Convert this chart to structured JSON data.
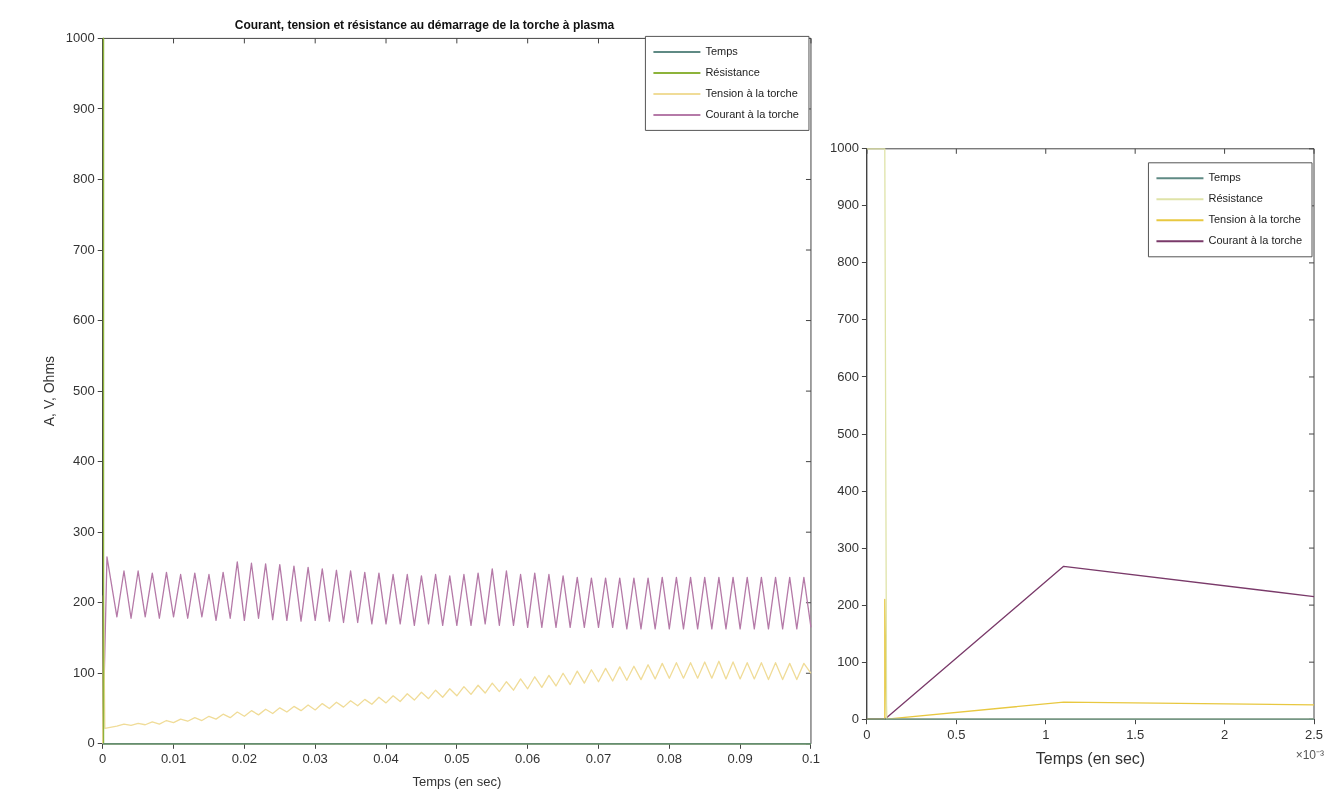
{
  "chart_data": [
    {
      "type": "line",
      "title": "Courant, tension et résistance au démarrage de la torche à plasma",
      "xlabel": "Temps (en sec)",
      "ylabel": "A, V, Ohms",
      "xlim": [
        0,
        0.1
      ],
      "ylim": [
        0,
        1000
      ],
      "xticks": [
        0,
        0.01,
        0.02,
        0.03,
        0.04,
        0.05,
        0.06,
        0.07,
        0.08,
        0.09,
        0.1
      ],
      "yticks": [
        0,
        100,
        200,
        300,
        400,
        500,
        600,
        700,
        800,
        900,
        1000
      ],
      "legend": "top right",
      "series": [
        {
          "name": "Temps",
          "color": "#5f8a84",
          "x": [
            0,
            0.1
          ],
          "values": [
            0,
            0
          ]
        },
        {
          "name": "Résistance",
          "color": "#8db33a",
          "x": [
            0,
            0.0001,
            0.00012,
            0.1
          ],
          "values": [
            1000,
            1000,
            0,
            0
          ]
        },
        {
          "name": "Tension à la torche",
          "color": "#f0dc98",
          "x": [
            0,
            0.0001,
            0.0003,
            0.002,
            0.003,
            0.004,
            0.005,
            0.006,
            0.007,
            0.008,
            0.009,
            0.01,
            0.011,
            0.012,
            0.013,
            0.014,
            0.015,
            0.016,
            0.017,
            0.018,
            0.019,
            0.02,
            0.021,
            0.022,
            0.023,
            0.024,
            0.025,
            0.026,
            0.027,
            0.028,
            0.029,
            0.03,
            0.031,
            0.032,
            0.033,
            0.034,
            0.035,
            0.036,
            0.037,
            0.038,
            0.039,
            0.04,
            0.041,
            0.042,
            0.043,
            0.044,
            0.045,
            0.046,
            0.047,
            0.048,
            0.049,
            0.05,
            0.051,
            0.052,
            0.053,
            0.054,
            0.055,
            0.056,
            0.057,
            0.058,
            0.059,
            0.06,
            0.061,
            0.062,
            0.063,
            0.064,
            0.065,
            0.066,
            0.067,
            0.068,
            0.069,
            0.07,
            0.071,
            0.072,
            0.073,
            0.074,
            0.075,
            0.076,
            0.077,
            0.078,
            0.079,
            0.08,
            0.081,
            0.082,
            0.083,
            0.084,
            0.085,
            0.086,
            0.087,
            0.088,
            0.089,
            0.09,
            0.091,
            0.092,
            0.093,
            0.094,
            0.095,
            0.096,
            0.097,
            0.098,
            0.099,
            0.1
          ],
          "values": [
            0,
            210,
            22,
            25,
            28,
            26,
            29,
            27,
            31,
            28,
            33,
            30,
            35,
            32,
            37,
            33,
            39,
            35,
            42,
            37,
            45,
            39,
            47,
            41,
            49,
            43,
            51,
            45,
            53,
            47,
            55,
            48,
            57,
            50,
            59,
            52,
            61,
            54,
            63,
            56,
            66,
            58,
            68,
            60,
            71,
            62,
            73,
            64,
            76,
            66,
            78,
            68,
            81,
            70,
            83,
            72,
            86,
            74,
            88,
            76,
            92,
            78,
            95,
            80,
            97,
            82,
            100,
            84,
            103,
            86,
            105,
            88,
            107,
            89,
            109,
            90,
            110,
            91,
            112,
            92,
            114,
            93,
            115,
            93,
            115,
            93,
            116,
            93,
            117,
            92,
            116,
            92,
            115,
            92,
            115,
            91,
            115,
            91,
            114,
            91,
            114,
            100
          ]
        },
        {
          "name": "Courant à la torche",
          "color": "#b57aa8",
          "x": [
            0,
            0.0006,
            0.002,
            0.003,
            0.004,
            0.005,
            0.006,
            0.007,
            0.008,
            0.009,
            0.01,
            0.011,
            0.012,
            0.013,
            0.014,
            0.015,
            0.016,
            0.017,
            0.018,
            0.019,
            0.02,
            0.021,
            0.022,
            0.023,
            0.024,
            0.025,
            0.026,
            0.027,
            0.028,
            0.029,
            0.03,
            0.031,
            0.032,
            0.033,
            0.034,
            0.035,
            0.036,
            0.037,
            0.038,
            0.039,
            0.04,
            0.041,
            0.042,
            0.043,
            0.044,
            0.045,
            0.046,
            0.047,
            0.048,
            0.049,
            0.05,
            0.051,
            0.052,
            0.053,
            0.054,
            0.055,
            0.056,
            0.057,
            0.058,
            0.059,
            0.06,
            0.061,
            0.062,
            0.063,
            0.064,
            0.065,
            0.066,
            0.067,
            0.068,
            0.069,
            0.07,
            0.071,
            0.072,
            0.073,
            0.074,
            0.075,
            0.076,
            0.077,
            0.078,
            0.079,
            0.08,
            0.081,
            0.082,
            0.083,
            0.084,
            0.085,
            0.086,
            0.087,
            0.088,
            0.089,
            0.09,
            0.091,
            0.092,
            0.093,
            0.094,
            0.095,
            0.096,
            0.097,
            0.098,
            0.099,
            0.1
          ],
          "values": [
            0,
            265,
            180,
            245,
            178,
            245,
            180,
            242,
            178,
            243,
            180,
            240,
            178,
            242,
            180,
            240,
            175,
            243,
            178,
            258,
            175,
            256,
            178,
            255,
            176,
            254,
            175,
            252,
            174,
            250,
            175,
            248,
            174,
            246,
            172,
            245,
            172,
            243,
            170,
            242,
            170,
            240,
            170,
            240,
            168,
            238,
            170,
            240,
            168,
            238,
            168,
            240,
            168,
            242,
            170,
            248,
            168,
            245,
            168,
            240,
            165,
            242,
            165,
            240,
            165,
            238,
            165,
            236,
            165,
            235,
            165,
            235,
            165,
            235,
            163,
            235,
            163,
            235,
            163,
            236,
            163,
            236,
            163,
            236,
            163,
            236,
            163,
            236,
            163,
            236,
            163,
            236,
            163,
            236,
            163,
            236,
            163,
            236,
            163,
            236,
            165
          ]
        }
      ]
    },
    {
      "type": "line",
      "xlabel": "Temps (en sec)",
      "xlim": [
        0,
        2.5
      ],
      "ylim": [
        0,
        1000
      ],
      "xticks": [
        0,
        0.5,
        1,
        1.5,
        2,
        2.5
      ],
      "yticks": [
        0,
        100,
        200,
        300,
        400,
        500,
        600,
        700,
        800,
        900,
        1000
      ],
      "legend": "top right",
      "annotations": [
        "×10⁻³"
      ],
      "series": [
        {
          "name": "Temps",
          "color": "#5f8a84",
          "x": [
            0,
            2.5
          ],
          "values": [
            0,
            0
          ]
        },
        {
          "name": "Résistance",
          "color": "#dfe3a8",
          "x": [
            0,
            0.1,
            0.11,
            2.5
          ],
          "values": [
            1000,
            1000,
            0,
            0
          ]
        },
        {
          "name": "Tension à la torche",
          "color": "#e8c840",
          "x": [
            0,
            0.1,
            0.1,
            0.11,
            1.1,
            2.5
          ],
          "values": [
            0,
            0,
            210,
            0,
            30,
            25
          ]
        },
        {
          "name": "Courant à la torche",
          "color": "#7a3a6a",
          "x": [
            0,
            0.1,
            1.1,
            2.5
          ],
          "values": [
            0,
            0,
            268,
            215
          ]
        }
      ]
    }
  ]
}
